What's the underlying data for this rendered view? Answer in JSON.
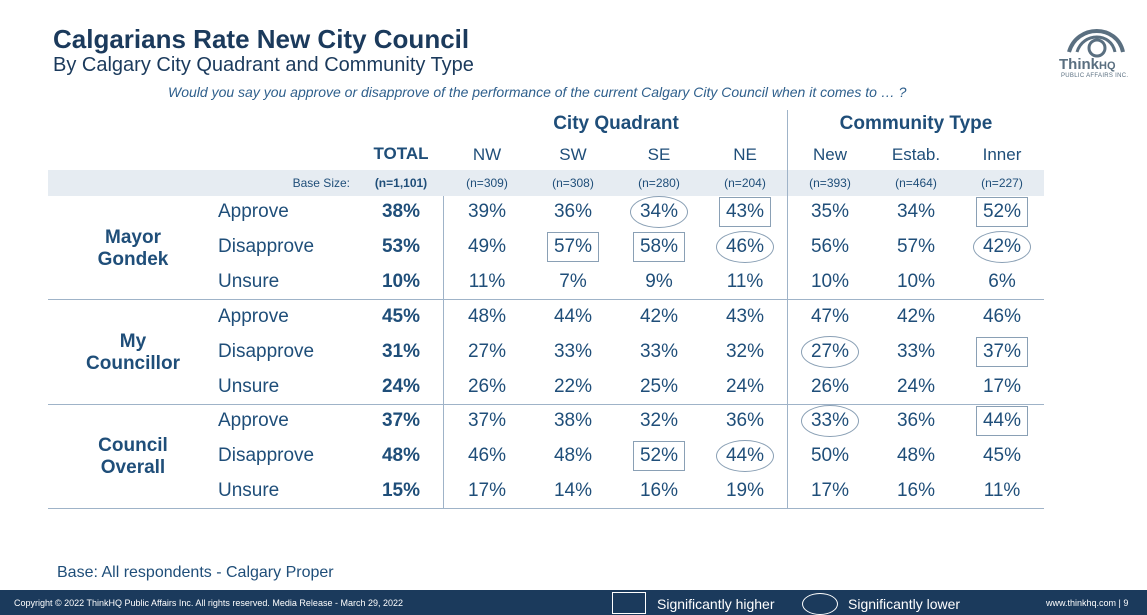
{
  "header": {
    "title": "Calgarians Rate New City Council",
    "subtitle": "By Calgary City Quadrant and Community Type",
    "question": "Would you say you approve or disapprove of the performance of the current Calgary City Council when it comes to … ?"
  },
  "logo": {
    "name": "Think",
    "suffix": "HQ",
    "tagline": "PUBLIC AFFAIRS INC."
  },
  "chart_data": {
    "type": "table",
    "group_headers": [
      "City Quadrant",
      "Community Type"
    ],
    "columns": [
      "TOTAL",
      "NW",
      "SW",
      "SE",
      "NE",
      "New",
      "Estab.",
      "Inner"
    ],
    "base_label": "Base Size:",
    "base_sizes": [
      "(n=1,101)",
      "(n=309)",
      "(n=308)",
      "(n=280)",
      "(n=204)",
      "(n=393)",
      "(n=464)",
      "(n=227)"
    ],
    "groups": [
      {
        "name": "Mayor Gondek",
        "rows": [
          {
            "label": "Approve",
            "values": [
              "38%",
              "39%",
              "36%",
              "34%",
              "43%",
              "35%",
              "34%",
              "52%"
            ],
            "marks": [
              "",
              "",
              "",
              "low",
              "high",
              "",
              "",
              "high"
            ]
          },
          {
            "label": "Disapprove",
            "values": [
              "53%",
              "49%",
              "57%",
              "58%",
              "46%",
              "56%",
              "57%",
              "42%"
            ],
            "marks": [
              "",
              "",
              "high",
              "high",
              "low",
              "",
              "",
              "low"
            ]
          },
          {
            "label": "Unsure",
            "values": [
              "10%",
              "11%",
              "7%",
              "9%",
              "11%",
              "10%",
              "10%",
              "6%"
            ],
            "marks": [
              "",
              "",
              "",
              "",
              "",
              "",
              "",
              ""
            ]
          }
        ]
      },
      {
        "name": "My Councillor",
        "rows": [
          {
            "label": "Approve",
            "values": [
              "45%",
              "48%",
              "44%",
              "42%",
              "43%",
              "47%",
              "42%",
              "46%"
            ],
            "marks": [
              "",
              "",
              "",
              "",
              "",
              "",
              "",
              ""
            ]
          },
          {
            "label": "Disapprove",
            "values": [
              "31%",
              "27%",
              "33%",
              "33%",
              "32%",
              "27%",
              "33%",
              "37%"
            ],
            "marks": [
              "",
              "",
              "",
              "",
              "",
              "low",
              "",
              "high"
            ]
          },
          {
            "label": "Unsure",
            "values": [
              "24%",
              "26%",
              "22%",
              "25%",
              "24%",
              "26%",
              "24%",
              "17%"
            ],
            "marks": [
              "",
              "",
              "",
              "",
              "",
              "",
              "",
              ""
            ]
          }
        ]
      },
      {
        "name": "Council Overall",
        "rows": [
          {
            "label": "Approve",
            "values": [
              "37%",
              "37%",
              "38%",
              "32%",
              "36%",
              "33%",
              "36%",
              "44%"
            ],
            "marks": [
              "",
              "",
              "",
              "",
              "",
              "low",
              "",
              "high"
            ]
          },
          {
            "label": "Disapprove",
            "values": [
              "48%",
              "46%",
              "48%",
              "52%",
              "44%",
              "50%",
              "48%",
              "45%"
            ],
            "marks": [
              "",
              "",
              "",
              "high",
              "low",
              "",
              "",
              ""
            ]
          },
          {
            "label": "Unsure",
            "values": [
              "15%",
              "17%",
              "14%",
              "16%",
              "19%",
              "17%",
              "16%",
              "11%"
            ],
            "marks": [
              "",
              "",
              "",
              "",
              "",
              "",
              "",
              ""
            ]
          }
        ]
      }
    ]
  },
  "base_note": "Base: All respondents - Calgary Proper",
  "footer": {
    "copyright": "Copyright © 2022 ThinkHQ Public Affairs Inc. All rights reserved. Media Release - March 29, 2022",
    "legend_high": "Significantly higher",
    "legend_low": "Significantly lower",
    "site": "www.thinkhq.com | 9"
  },
  "colors": {
    "text": "#1f4e79",
    "title": "#1b3a5c",
    "band": "#e6ecf2",
    "footer": "#1b3a5c",
    "rule": "#9fb3c8"
  }
}
